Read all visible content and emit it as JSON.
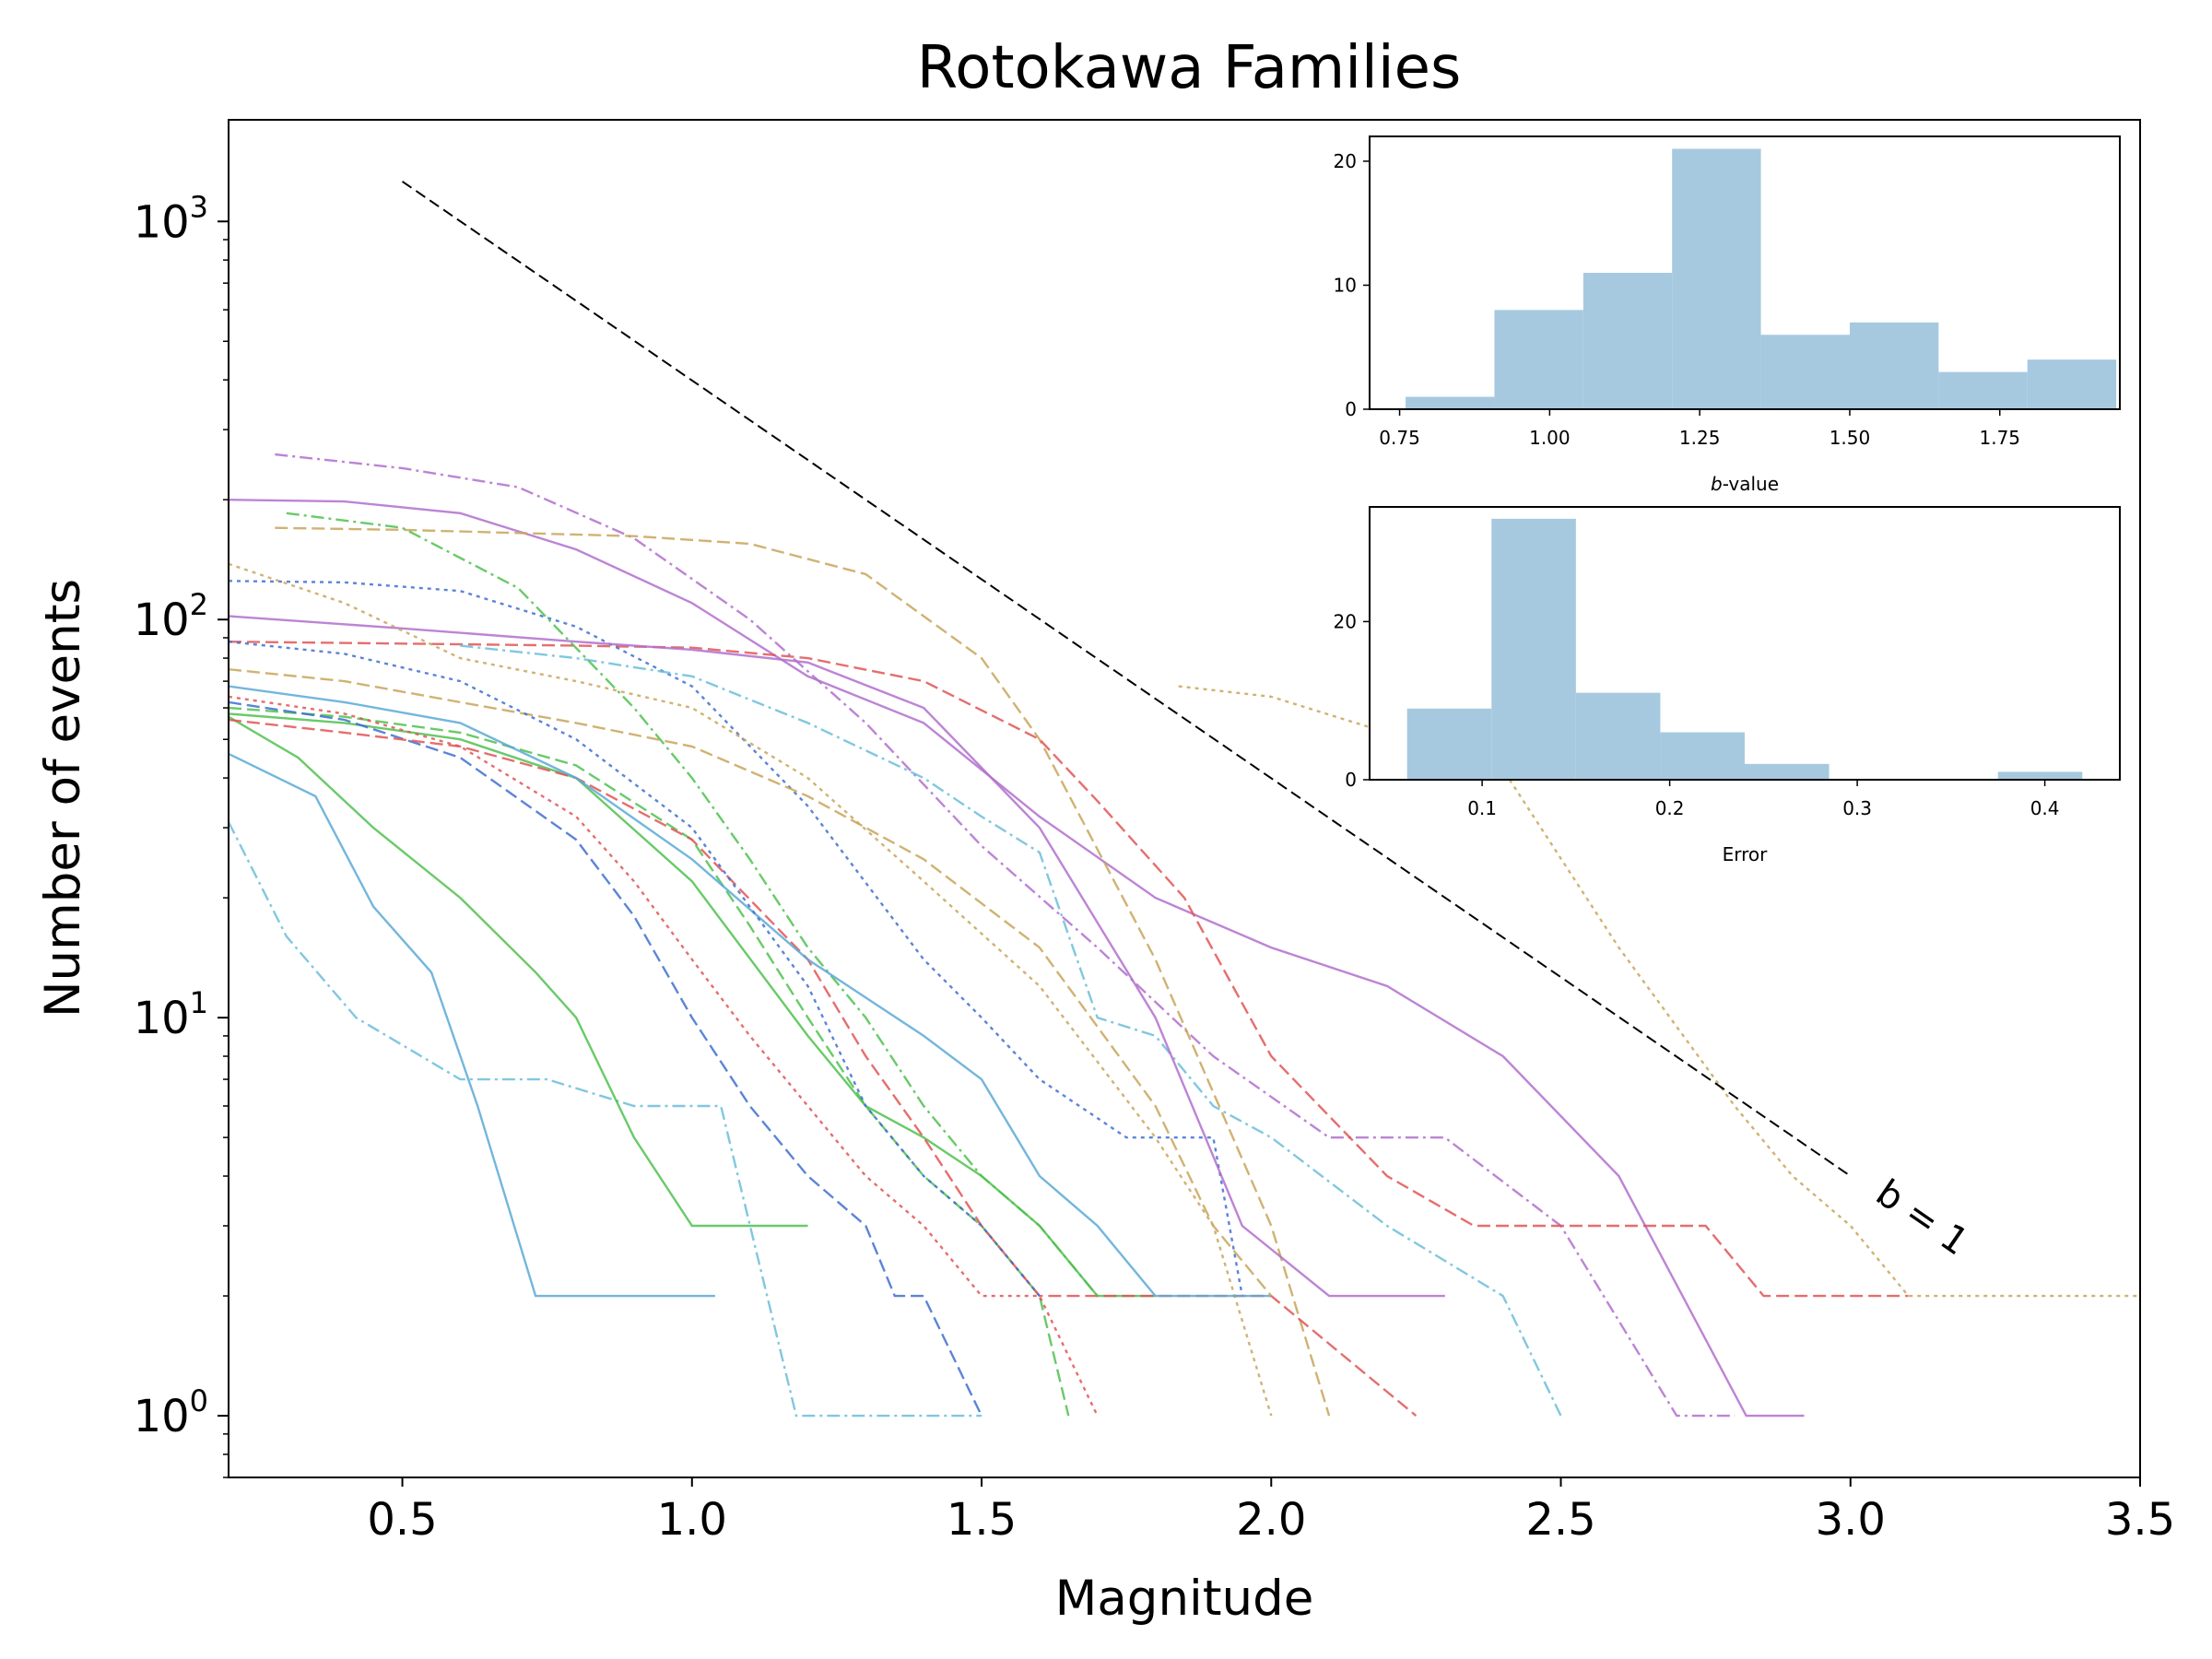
{
  "chart_data": [
    {
      "type": "line",
      "title": "Rotokawa Families",
      "xlabel": "Magnitude",
      "ylabel": "Number of events",
      "xlim": [
        0.2,
        3.5
      ],
      "ylim": [
        0.7,
        1800
      ],
      "yscale": "log",
      "xticks": [
        0.5,
        1.0,
        1.5,
        2.0,
        2.5,
        3.0,
        3.5
      ],
      "xtick_labels": [
        "0.5",
        "1.0",
        "1.5",
        "2.0",
        "2.5",
        "3.0",
        "3.5"
      ],
      "yticks": [
        {
          "value": 1,
          "base": "10",
          "exp": "0"
        },
        {
          "value": 10,
          "base": "10",
          "exp": "1"
        },
        {
          "value": 100,
          "base": "10",
          "exp": "2"
        },
        {
          "value": 1000,
          "base": "10",
          "exp": "3"
        }
      ],
      "reference_line": {
        "label": "b = 1",
        "x": [
          0.5,
          3.0
        ],
        "y": [
          1260,
          4.0
        ]
      },
      "palette": [
        "#5aa9d6",
        "#4fc14f",
        "#e05555",
        "#3f6fd0",
        "#b26fcc",
        "#c8a55a",
        "#6bbdd9"
      ],
      "series": [
        {
          "style": "solid",
          "color": "#b26fcc",
          "x": [
            0.2,
            0.4,
            0.6,
            0.8,
            1.0,
            1.2,
            1.4,
            1.6,
            1.8,
            2.0,
            2.2,
            2.4,
            2.6,
            2.82,
            2.92
          ],
          "y": [
            200,
            198,
            185,
            150,
            110,
            72,
            55,
            32,
            20,
            15,
            12,
            8,
            4,
            1,
            1
          ]
        },
        {
          "style": "dashdot",
          "color": "#b26fcc",
          "x": [
            0.28,
            0.5,
            0.7,
            0.9,
            1.1,
            1.3,
            1.5,
            1.7,
            1.9,
            2.1,
            2.3,
            2.5,
            2.7,
            2.8
          ],
          "y": [
            260,
            240,
            215,
            160,
            100,
            55,
            27,
            15,
            8,
            5,
            5,
            3,
            1,
            1
          ]
        },
        {
          "style": "dashed",
          "color": "#c8a55a",
          "x": [
            0.28,
            0.5,
            0.7,
            0.9,
            1.1,
            1.3,
            1.5,
            1.6,
            1.8,
            2.0,
            2.1
          ],
          "y": [
            170,
            168,
            165,
            162,
            155,
            130,
            80,
            50,
            14,
            3,
            1
          ]
        },
        {
          "style": "dotted",
          "color": "#c8a55a",
          "x": [
            1.84,
            2.0,
            2.2,
            2.4,
            2.6,
            2.8,
            2.9,
            3.0,
            3.1,
            3.3,
            3.5
          ],
          "y": [
            68,
            64,
            52,
            42,
            15,
            6,
            4,
            3,
            2,
            2,
            2
          ]
        },
        {
          "style": "dashed",
          "color": "#e05555",
          "x": [
            0.2,
            0.5,
            0.8,
            1.0,
            1.2,
            1.4,
            1.6,
            1.7,
            1.85,
            2.0,
            2.2,
            2.35,
            2.55,
            2.75,
            2.85,
            3.1
          ],
          "y": [
            88,
            87,
            86,
            85,
            80,
            70,
            50,
            35,
            20,
            8,
            4,
            3,
            3,
            3,
            2,
            2
          ]
        },
        {
          "style": "dotted",
          "color": "#3f6fd0",
          "x": [
            0.2,
            0.4,
            0.6,
            0.8,
            1.0,
            1.2,
            1.4,
            1.5,
            1.6,
            1.75,
            1.9,
            1.95
          ],
          "y": [
            125,
            124,
            118,
            96,
            68,
            34,
            14,
            10,
            7,
            5,
            5,
            2
          ]
        },
        {
          "style": "dashdot",
          "color": "#6bbdd9",
          "x": [
            0.6,
            0.8,
            1.0,
            1.2,
            1.4,
            1.5,
            1.6,
            1.7,
            1.8,
            1.9,
            2.0,
            2.2,
            2.4,
            2.5
          ],
          "y": [
            86,
            80,
            72,
            55,
            40,
            32,
            26,
            10,
            9,
            6,
            5,
            3,
            2,
            1
          ]
        },
        {
          "style": "solid",
          "color": "#4fc14f",
          "x": [
            0.2,
            0.4,
            0.6,
            0.8,
            1.0,
            1.2,
            1.3,
            1.4,
            1.5,
            1.6,
            1.7,
            1.8
          ],
          "y": [
            58,
            55,
            50,
            40,
            22,
            9,
            6,
            5,
            4,
            3,
            2,
            2
          ]
        },
        {
          "style": "dashed",
          "color": "#4fc14f",
          "x": [
            0.2,
            0.4,
            0.6,
            0.8,
            1.0,
            1.1,
            1.2,
            1.3,
            1.4,
            1.5,
            1.6,
            1.65
          ],
          "y": [
            60,
            57,
            52,
            43,
            28,
            17,
            10,
            6,
            4,
            3,
            2,
            1
          ]
        },
        {
          "style": "solid",
          "color": "#5aa9d6",
          "x": [
            0.2,
            0.35,
            0.45,
            0.55,
            0.63,
            0.73,
            1.04
          ],
          "y": [
            46,
            36,
            19,
            13,
            6,
            2,
            2
          ]
        },
        {
          "style": "dashdot",
          "color": "#6bbdd9",
          "x": [
            0.2,
            0.3,
            0.42,
            0.6,
            0.75,
            0.9,
            1.05,
            1.18,
            1.5
          ],
          "y": [
            31,
            16,
            10,
            7,
            7,
            6,
            6,
            1,
            1
          ]
        },
        {
          "style": "solid",
          "color": "#4fc14f",
          "x": [
            0.2,
            0.32,
            0.45,
            0.6,
            0.73,
            0.8,
            0.9,
            1.0,
            1.2
          ],
          "y": [
            57,
            45,
            30,
            20,
            13,
            10,
            5,
            3,
            3
          ]
        },
        {
          "style": "dotted",
          "color": "#e05555",
          "x": [
            0.2,
            0.4,
            0.6,
            0.8,
            0.9,
            1.0,
            1.1,
            1.2,
            1.3,
            1.4,
            1.5,
            1.6,
            1.7
          ],
          "y": [
            64,
            58,
            48,
            32,
            22,
            14,
            9,
            6,
            4,
            3,
            2,
            2,
            1
          ]
        },
        {
          "style": "dashed",
          "color": "#3f6fd0",
          "x": [
            0.2,
            0.4,
            0.6,
            0.8,
            0.9,
            1.0,
            1.1,
            1.2,
            1.3,
            1.35,
            1.4,
            1.5
          ],
          "y": [
            62,
            56,
            45,
            28,
            18,
            10,
            6,
            4,
            3,
            2,
            2,
            1
          ]
        },
        {
          "style": "solid",
          "color": "#b26fcc",
          "x": [
            0.2,
            0.5,
            0.8,
            1.0,
            1.2,
            1.4,
            1.6,
            1.8,
            1.95,
            2.1,
            2.3
          ],
          "y": [
            102,
            95,
            88,
            84,
            78,
            60,
            30,
            10,
            3,
            2,
            2
          ]
        },
        {
          "style": "dashed",
          "color": "#e05555",
          "x": [
            0.2,
            0.4,
            0.6,
            0.8,
            1.0,
            1.2,
            1.3,
            1.4,
            1.5,
            1.6,
            1.8,
            2.0,
            2.25
          ],
          "y": [
            56,
            52,
            48,
            40,
            28,
            14,
            8,
            5,
            3,
            2,
            2,
            2,
            1
          ]
        },
        {
          "style": "dotted",
          "color": "#c8a55a",
          "x": [
            0.2,
            0.4,
            0.6,
            0.8,
            1.0,
            1.2,
            1.4,
            1.6,
            1.8,
            1.9,
            2.0
          ],
          "y": [
            138,
            110,
            80,
            70,
            60,
            40,
            22,
            12,
            5,
            3,
            1
          ]
        },
        {
          "style": "dashdot",
          "color": "#4fc14f",
          "x": [
            0.3,
            0.5,
            0.7,
            0.9,
            1.0,
            1.1,
            1.2,
            1.3,
            1.4,
            1.5,
            1.6,
            1.7
          ],
          "y": [
            185,
            170,
            120,
            60,
            40,
            25,
            15,
            10,
            6,
            4,
            3,
            2
          ]
        },
        {
          "style": "solid",
          "color": "#5aa9d6",
          "x": [
            0.2,
            0.4,
            0.6,
            0.8,
            1.0,
            1.2,
            1.4,
            1.5,
            1.6,
            1.7,
            1.8,
            2.0
          ],
          "y": [
            68,
            62,
            55,
            40,
            25,
            14,
            9,
            7,
            4,
            3,
            2,
            2
          ]
        },
        {
          "style": "dashed",
          "color": "#c8a55a",
          "x": [
            0.2,
            0.4,
            0.6,
            0.8,
            1.0,
            1.2,
            1.4,
            1.6,
            1.8,
            1.9,
            2.0
          ],
          "y": [
            75,
            70,
            62,
            55,
            48,
            36,
            25,
            15,
            6,
            3,
            2
          ]
        },
        {
          "style": "dotted",
          "color": "#3f6fd0",
          "x": [
            0.2,
            0.4,
            0.6,
            0.8,
            1.0,
            1.2,
            1.3,
            1.4,
            1.5,
            1.6
          ],
          "y": [
            88,
            82,
            70,
            50,
            30,
            12,
            6,
            4,
            3,
            2
          ]
        }
      ]
    },
    {
      "type": "bar",
      "xlabel": "b-value",
      "xlabel_italic": "b",
      "xlabel_rest": "-value",
      "bin_edges": [
        0.76,
        0.908,
        1.056,
        1.204,
        1.352,
        1.5,
        1.648,
        1.796,
        1.944
      ],
      "values": [
        1,
        8,
        11,
        21,
        6,
        7,
        3,
        4
      ],
      "xlim": [
        0.7,
        1.95
      ],
      "ylim": [
        0,
        22
      ],
      "xticks": [
        0.75,
        1.0,
        1.25,
        1.5,
        1.75
      ],
      "xtick_labels": [
        "0.75",
        "1.00",
        "1.25",
        "1.50",
        "1.75"
      ],
      "yticks": [
        0,
        10,
        20
      ],
      "ytick_labels": [
        "0",
        "10",
        "20"
      ],
      "color": "#a6c9e0"
    },
    {
      "type": "bar",
      "xlabel": "Error",
      "bin_edges": [
        0.06,
        0.105,
        0.15,
        0.195,
        0.24,
        0.285,
        0.33,
        0.375,
        0.42
      ],
      "values": [
        9,
        33,
        11,
        6,
        2,
        0,
        0,
        1
      ],
      "xlim": [
        0.04,
        0.44
      ],
      "ylim": [
        0,
        34.5
      ],
      "xticks": [
        0.1,
        0.2,
        0.3,
        0.4
      ],
      "xtick_labels": [
        "0.1",
        "0.2",
        "0.3",
        "0.4"
      ],
      "yticks": [
        0,
        20
      ],
      "ytick_labels": [
        "0",
        "20"
      ],
      "color": "#a6c9e0"
    }
  ]
}
